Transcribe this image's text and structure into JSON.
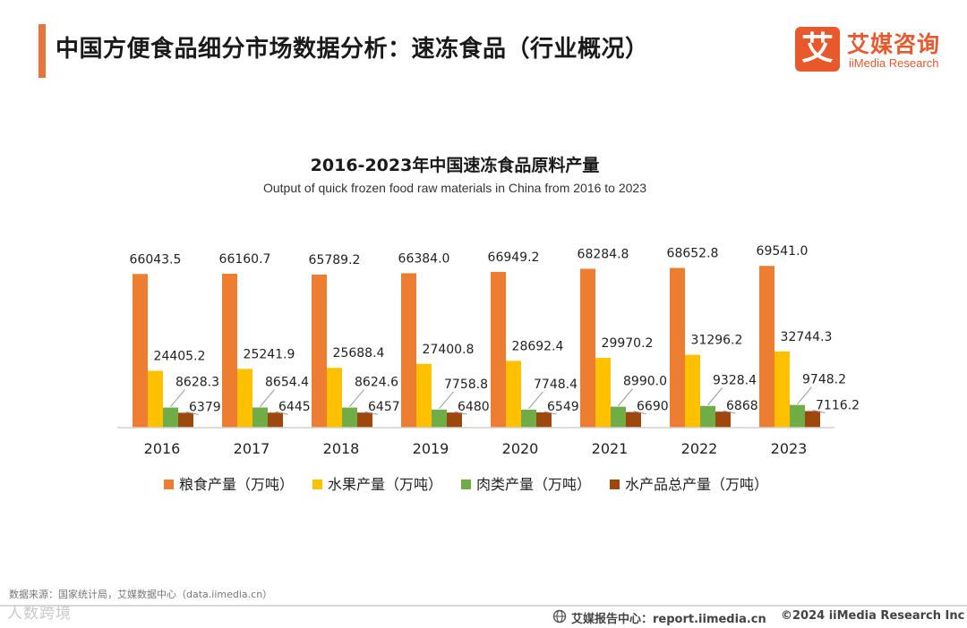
{
  "page": {
    "title": "中国方便食品细分市场数据分析：速冻食品（行业概况）"
  },
  "logo": {
    "mark": "艾",
    "cn": "艾媒咨询",
    "en": "iiMedia Research"
  },
  "chart_data": {
    "type": "bar",
    "title": "2016-2023年中国速冻食品原料产量",
    "subtitle": "Output of quick frozen food raw materials in China from 2016 to 2023",
    "categories": [
      "2016",
      "2017",
      "2018",
      "2019",
      "2020",
      "2021",
      "2022",
      "2023"
    ],
    "series": [
      {
        "name": "粮食产量（万吨）",
        "color": "#ed7d31",
        "values": [
          66043.5,
          66160.7,
          65789.2,
          66384.0,
          66949.2,
          68284.8,
          68652.8,
          69541.0
        ],
        "labels": [
          "66043.5",
          "66160.7",
          "65789.2",
          "66384.0",
          "66949.2",
          "68284.8",
          "68652.8",
          "69541.0"
        ]
      },
      {
        "name": "水果产量（万吨）",
        "color": "#ffc000",
        "values": [
          24405.2,
          25241.9,
          25688.4,
          27400.8,
          28692.4,
          29970.2,
          31296.2,
          32744.3
        ],
        "labels": [
          "24405.2",
          "25241.9",
          "25688.4",
          "27400.8",
          "28692.4",
          "29970.2",
          "31296.2",
          "32744.3"
        ]
      },
      {
        "name": "肉类产量（万吨）",
        "color": "#70ad47",
        "values": [
          8628.3,
          8654.4,
          8624.6,
          7758.8,
          7748.4,
          8990.0,
          9328.4,
          9748.2
        ],
        "labels": [
          "8628.3",
          "8654.4",
          "8624.6",
          "7758.8",
          "7748.4",
          "8990.0",
          "9328.4",
          "9748.2"
        ]
      },
      {
        "name": "水产品总产量（万吨）",
        "color": "#9e480e",
        "values": [
          6379.5,
          6445.3,
          6457.7,
          6480.4,
          6549.0,
          6690.3,
          6868.8,
          7116.2
        ],
        "labels": [
          "6379.5",
          "6445.3",
          "6457.7",
          "6480.4",
          "6549.0",
          "6690.3",
          "6868.8",
          "7116.2"
        ]
      }
    ],
    "legend_position": "bottom",
    "grid": false
  },
  "footer": {
    "source": "数据来源：国家统计局，艾媒数据中心（data.iimedia.cn）",
    "watermark": "人数跨境",
    "center": "艾媒报告中心：report.iimedia.cn",
    "right": "©2024  iiMedia Research Inc"
  }
}
